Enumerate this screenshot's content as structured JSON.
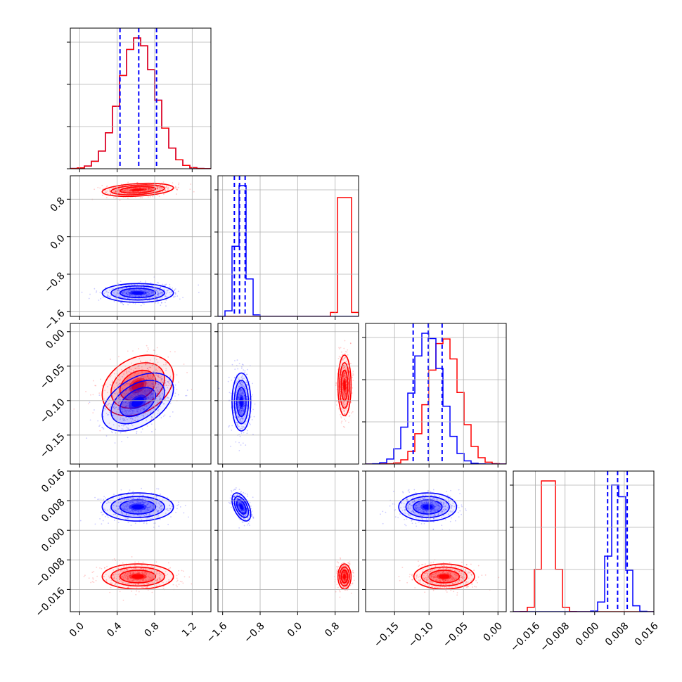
{
  "colors": {
    "red": "#ff0000",
    "blue": "#0000ff",
    "grid": "#b0b0b0"
  },
  "chart_data": {
    "type": "corner",
    "series": [
      {
        "name": "",
        "color": "#ff0000",
        "params": [
          {
            "mean": 0.62,
            "sd": 0.19
          },
          {
            "mean": 1.0,
            "sd": 0.07
          },
          {
            "mean": -0.078,
            "sd": 0.022
          },
          {
            "mean": -0.0125,
            "sd": 0.0017
          }
        ],
        "correlations": {
          "0-1": 0.3,
          "0-2": 0.3,
          "0-3": 0.0,
          "1-2": 0.0,
          "1-3": 0.0,
          "2-3": 0.0
        }
      },
      {
        "name": "",
        "color": "#0000ff",
        "params": [
          {
            "mean": 0.62,
            "sd": 0.19
          },
          {
            "mean": -1.2,
            "sd": 0.1
          },
          {
            "mean": -0.102,
            "sd": 0.021
          },
          {
            "mean": 0.0063,
            "sd": 0.0019
          }
        ],
        "correlations": {
          "0-1": 0.0,
          "0-2": 0.45,
          "0-3": 0.0,
          "1-2": 0.0,
          "1-3": -0.5,
          "2-3": 0.0
        }
      }
    ],
    "quantile_lines_color": "#0000ff",
    "quantile_lines": [
      [
        0.43,
        0.63,
        0.82
      ],
      [
        -1.35,
        -1.24,
        -1.12
      ],
      [
        -0.123,
        -0.101,
        -0.081
      ],
      [
        0.0035,
        0.0062,
        0.0088
      ]
    ],
    "axes": [
      {
        "range": [
          -0.1,
          1.4
        ],
        "ticks": [
          0.0,
          0.4,
          0.8,
          1.2
        ],
        "tick_labels": [
          "0.0",
          "0.4",
          "0.8",
          "1.2"
        ]
      },
      {
        "range": [
          -1.7,
          1.3
        ],
        "ticks": [
          -1.6,
          -0.8,
          0.0,
          0.8
        ],
        "tick_labels": [
          "−1.6",
          "−0.8",
          "0.0",
          "0.8"
        ]
      },
      {
        "range": [
          -0.192,
          0.012
        ],
        "ticks": [
          -0.15,
          -0.1,
          -0.05,
          0.0
        ],
        "tick_labels": [
          "−0.15",
          "−0.10",
          "−0.05",
          "0.00"
        ]
      },
      {
        "range": [
          -0.022,
          0.016
        ],
        "ticks": [
          -0.016,
          -0.008,
          0.0,
          0.008,
          0.016
        ],
        "tick_labels": [
          "−0.016",
          "−0.008",
          "0.000",
          "0.008",
          "0.016"
        ]
      }
    ],
    "grid": true,
    "histogram_bins": 20,
    "xlabel": "",
    "ylabel": "",
    "title": ""
  }
}
